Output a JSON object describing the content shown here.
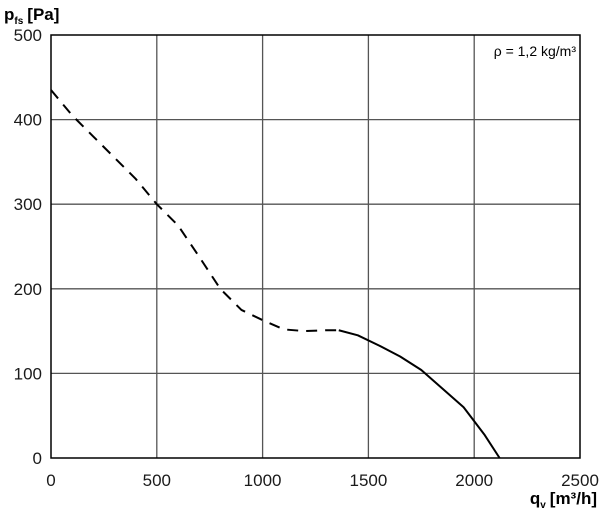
{
  "chart_data": {
    "type": "line",
    "ylabel": {
      "symbol": "p",
      "subscript": "fs",
      "unit": "[Pa]"
    },
    "xlabel": {
      "symbol": "q",
      "subscript": "v",
      "unit": "[m³/h]"
    },
    "annotation": "ρ = 1,2 kg/m³",
    "xlim": [
      0,
      2500
    ],
    "ylim": [
      0,
      500
    ],
    "x_ticks": [
      0,
      500,
      1000,
      1500,
      2000,
      2500
    ],
    "y_ticks": [
      0,
      100,
      200,
      300,
      400,
      500
    ],
    "grid": true,
    "series": [
      {
        "line_style": "dashed",
        "points": [
          [
            0,
            435
          ],
          [
            100,
            405
          ],
          [
            200,
            380
          ],
          [
            300,
            355
          ],
          [
            400,
            330
          ],
          [
            500,
            300
          ],
          [
            600,
            275
          ],
          [
            700,
            238
          ],
          [
            800,
            200
          ],
          [
            900,
            175
          ],
          [
            1000,
            163
          ],
          [
            1100,
            152
          ],
          [
            1200,
            150
          ],
          [
            1300,
            151
          ],
          [
            1360,
            151
          ]
        ]
      },
      {
        "line_style": "solid",
        "points": [
          [
            1360,
            151
          ],
          [
            1450,
            145
          ],
          [
            1550,
            133
          ],
          [
            1650,
            120
          ],
          [
            1750,
            104
          ],
          [
            1850,
            82
          ],
          [
            1950,
            60
          ],
          [
            2050,
            27
          ],
          [
            2120,
            0
          ]
        ]
      }
    ]
  }
}
